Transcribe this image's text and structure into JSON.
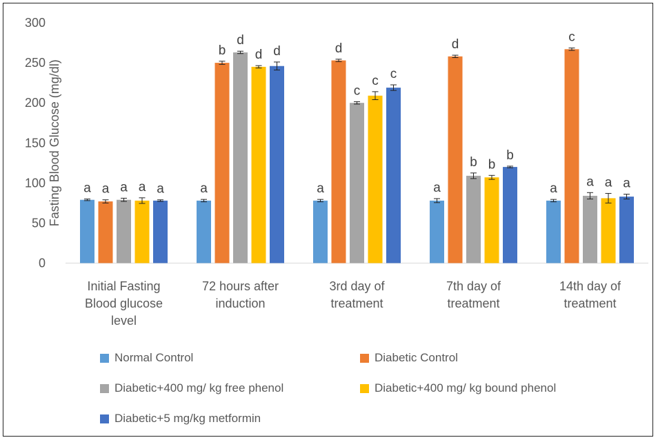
{
  "chart_data": {
    "type": "bar",
    "ylabel": "Fasting Blood Glucose  (mg/dl)",
    "xlabel": "",
    "ylim": [
      0,
      300
    ],
    "yticks": [
      0,
      50,
      100,
      150,
      200,
      250,
      300
    ],
    "grid": false,
    "legend_position": "bottom",
    "categories": [
      [
        "Initial Fasting",
        "Blood glucose",
        "level"
      ],
      [
        "72 hours after",
        "induction"
      ],
      [
        "3rd day of",
        "treatment"
      ],
      [
        "7th day of",
        "treatment"
      ],
      [
        "14th day of",
        "treatment"
      ]
    ],
    "series": [
      {
        "name": "Normal Control",
        "color": "#5B9BD5",
        "values": [
          79,
          78,
          78,
          78,
          78
        ],
        "errors": [
          1,
          1.5,
          1.5,
          2.5,
          1.5
        ],
        "letters": [
          "a",
          "a",
          "a",
          "a",
          "a"
        ]
      },
      {
        "name": "Diabetic Control",
        "color": "#ED7D31",
        "values": [
          77,
          250,
          253,
          258,
          267
        ],
        "errors": [
          2,
          2,
          1.5,
          1.5,
          1.5
        ],
        "letters": [
          "a",
          "b",
          "d",
          "d",
          "c"
        ]
      },
      {
        "name": "Diabetic+400 mg/ kg free phenol",
        "color": "#A5A5A5",
        "values": [
          79,
          263,
          200,
          109,
          84
        ],
        "errors": [
          2,
          1.5,
          1.5,
          3.5,
          4
        ],
        "letters": [
          "a",
          "d",
          "c",
          "b",
          "a"
        ]
      },
      {
        "name": "Diabetic+400 mg/ kg bound phenol",
        "color": "#FFC000",
        "values": [
          78,
          245,
          209,
          107,
          81
        ],
        "errors": [
          3.5,
          1.5,
          5,
          2.5,
          6
        ],
        "letters": [
          "a",
          "d",
          "c",
          "b",
          "a"
        ]
      },
      {
        "name": "Diabetic+5 mg/kg metformin",
        "color": "#4472C4",
        "values": [
          78,
          246,
          219,
          120,
          83
        ],
        "errors": [
          1,
          5,
          3.5,
          1,
          3
        ],
        "letters": [
          "a",
          "d",
          "c",
          "b",
          "a"
        ]
      }
    ]
  }
}
